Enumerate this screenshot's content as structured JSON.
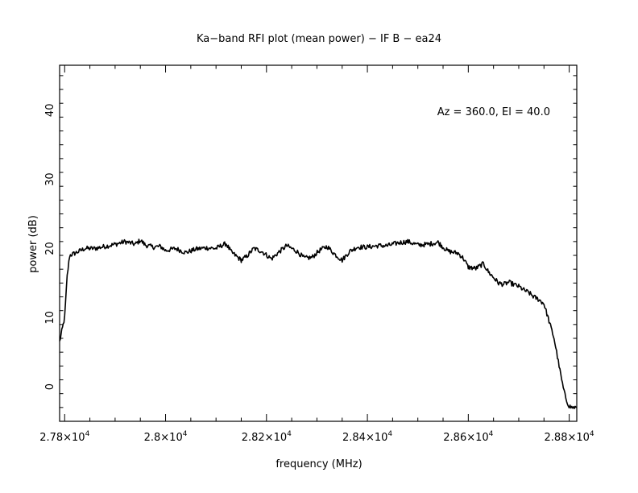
{
  "chart_data": {
    "type": "line",
    "title": "Ka−band RFI plot (mean power) − IF B − ea24",
    "annotation": "Az = 360.0, El = 40.0",
    "xlabel": "frequency (MHz)",
    "ylabel": "power (dB)",
    "xlim": [
      27790,
      28815
    ],
    "ylim": [
      -5,
      46.5
    ],
    "x_ticks": [
      {
        "value": 27800,
        "mant": "2.78",
        "exp": "4"
      },
      {
        "value": 28000,
        "mant": "2.8",
        "exp": "4"
      },
      {
        "value": 28200,
        "mant": "2.82",
        "exp": "4"
      },
      {
        "value": 28400,
        "mant": "2.84",
        "exp": "4"
      },
      {
        "value": 28600,
        "mant": "2.86",
        "exp": "4"
      },
      {
        "value": 28800,
        "mant": "2.88",
        "exp": "4"
      }
    ],
    "y_ticks": [
      {
        "value": 0,
        "label": "0"
      },
      {
        "value": 10,
        "label": "10"
      },
      {
        "value": 20,
        "label": "20"
      },
      {
        "value": 30,
        "label": "30"
      },
      {
        "value": 40,
        "label": "40"
      }
    ],
    "grid": false,
    "series": [
      {
        "color": "#000000",
        "x": [
          27790,
          27800,
          27805,
          27810,
          27820,
          27840,
          27860,
          27880,
          27900,
          27920,
          27940,
          27950,
          27960,
          27975,
          27990,
          28000,
          28020,
          28040,
          28060,
          28080,
          28100,
          28110,
          28120,
          28130,
          28150,
          28160,
          28175,
          28190,
          28210,
          28225,
          28240,
          28260,
          28275,
          28290,
          28305,
          28320,
          28335,
          28350,
          28365,
          28380,
          28400,
          28420,
          28440,
          28460,
          28480,
          28500,
          28520,
          28540,
          28550,
          28560,
          28580,
          28590,
          28600,
          28615,
          28630,
          28640,
          28650,
          28660,
          28670,
          28680,
          28700,
          28710,
          28720,
          28730,
          28740,
          28750,
          28760,
          28770,
          28775,
          28780,
          28785,
          28790,
          28795,
          28800,
          28805,
          28810,
          28815
        ],
        "y": [
          6.5,
          10,
          16,
          19,
          19.3,
          20,
          20,
          20.3,
          20.6,
          21,
          20.6,
          21.2,
          20.5,
          20.2,
          20.3,
          19.7,
          20,
          19.4,
          19.9,
          20.1,
          20,
          20.4,
          20.7,
          19.5,
          18.3,
          18.8,
          20,
          19.6,
          18.5,
          19.5,
          20.4,
          19.6,
          18.6,
          18.7,
          19.7,
          20.3,
          19.2,
          18.3,
          19.6,
          20.2,
          20.2,
          20.4,
          20.4,
          20.8,
          21,
          20.5,
          20.6,
          20.9,
          20.2,
          19.6,
          19.3,
          18.6,
          17.3,
          17.1,
          17.8,
          16.6,
          15.8,
          15.0,
          14.8,
          15.1,
          14.5,
          14.0,
          13.6,
          13.0,
          12.6,
          12.0,
          9.5,
          7.0,
          5.0,
          3.0,
          1.0,
          -0.8,
          -2.0,
          -2.8,
          -3.0,
          -3.0,
          -3.0
        ]
      }
    ]
  }
}
